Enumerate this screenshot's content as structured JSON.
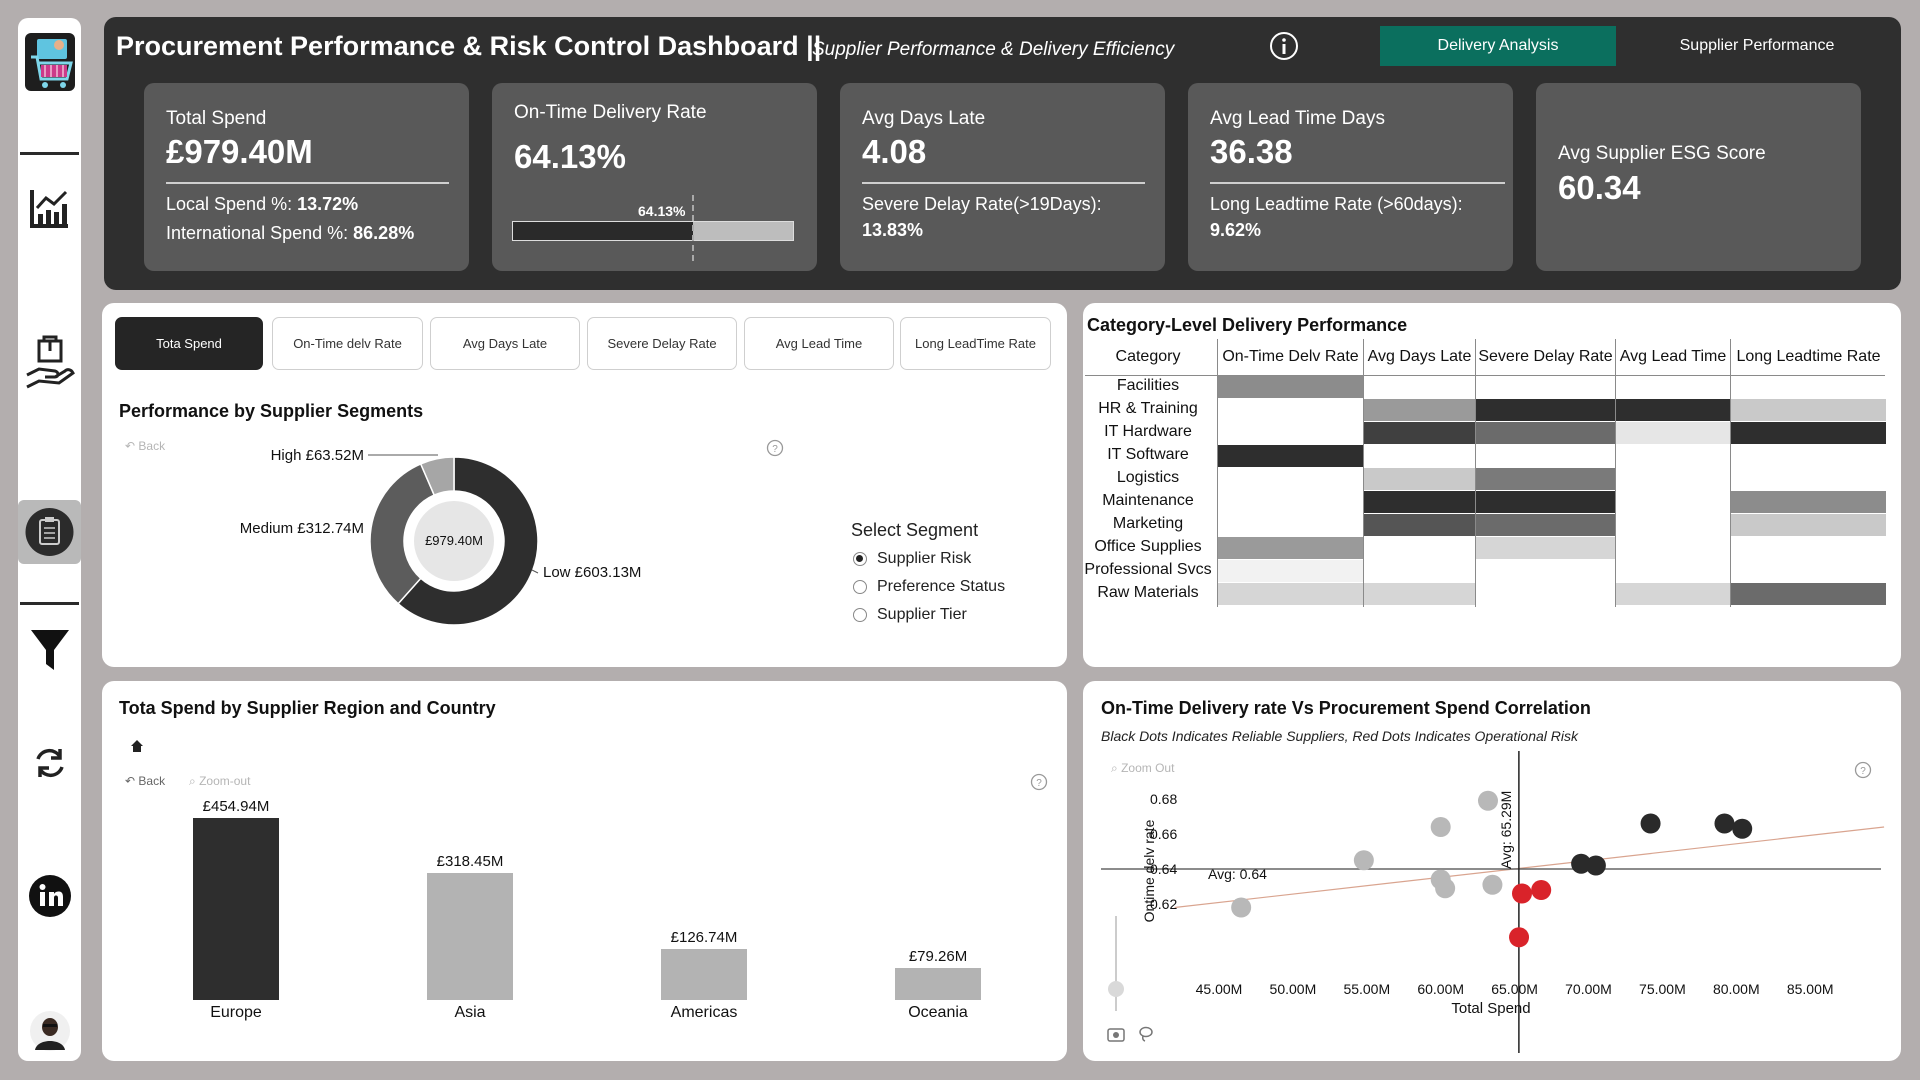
{
  "sidebar": {
    "items": [
      {
        "name": "logo-cart-icon"
      },
      {
        "name": "line-chart-icon"
      },
      {
        "name": "hand-box-icon"
      },
      {
        "name": "clipboard-icon"
      },
      {
        "name": "filter-icon"
      },
      {
        "name": "refresh-icon"
      },
      {
        "name": "linkedin-icon"
      },
      {
        "name": "avatar"
      }
    ]
  },
  "header": {
    "title": "Procurement Performance & Risk Control Dashboard ||",
    "subtitle": "Supplier Performance & Delivery Efficiency",
    "btn_delivery": "Delivery Analysis",
    "btn_supplier": "Supplier Performance",
    "colors": {
      "accent": "#0b6f5e",
      "header_bg": "#2f2f2f",
      "card_bg": "#595959"
    }
  },
  "kpis": {
    "spend": {
      "label": "Total Spend",
      "value": "£979.40M",
      "local_label": "Local Spend %:",
      "local_value": "13.72%",
      "intl_label": "International Spend %:",
      "intl_value": "86.28%"
    },
    "otd": {
      "label": "On-Time Delivery Rate",
      "value": "64.13%",
      "gauge_label": "64.13%",
      "gauge_fraction": 0.6413
    },
    "late": {
      "label": "Avg Days Late",
      "value": "4.08",
      "sub_label": "Severe Delay Rate(>19Days):",
      "sub_value": "13.83%"
    },
    "lead": {
      "label": "Avg Lead Time Days",
      "value": "36.38",
      "sub_label": "Long Leadtime Rate (>60days):",
      "sub_value": "9.62%"
    },
    "esg": {
      "label": "Avg Supplier ESG Score",
      "value": "60.34"
    }
  },
  "segments": {
    "tabs": [
      "Tota Spend",
      "On-Time delv Rate",
      "Avg Days Late",
      "Severe Delay Rate",
      "Avg Lead Time",
      "Long LeadTime Rate"
    ],
    "active_tab": 0,
    "title": "Performance by Supplier Segments",
    "back": "Back",
    "donut_center": "£979.40M",
    "donut_labels": {
      "high": "High £63.52M",
      "medium": "Medium £312.74M",
      "low": "Low £603.13M"
    },
    "select_title": "Select Segment",
    "options": [
      "Supplier Risk",
      "Preference Status",
      "Supplier Tier"
    ],
    "selected_option": 0
  },
  "heatmap": {
    "title": "Category-Level Delivery Performance",
    "columns": [
      "Category",
      "On-Time Delv Rate",
      "Avg Days Late",
      "Severe Delay Rate",
      "Avg Lead Time",
      "Long Leadtime Rate"
    ],
    "rows": [
      {
        "category": "Facilities",
        "shades": [
          "#8c8c8c",
          "#ffffff",
          "#ffffff",
          "#ffffff",
          "#ffffff"
        ]
      },
      {
        "category": "HR & Training",
        "shades": [
          "#ffffff",
          "#9a9a9a",
          "#2e2e2e",
          "#2e2e2e",
          "#c9c9c9"
        ]
      },
      {
        "category": "IT Hardware",
        "shades": [
          "#ffffff",
          "#404040",
          "#6b6b6b",
          "#e6e6e6",
          "#2e2e2e"
        ]
      },
      {
        "category": "IT Software",
        "shades": [
          "#2e2e2e",
          "#ffffff",
          "#ffffff",
          "#ffffff",
          "#ffffff"
        ]
      },
      {
        "category": "Logistics",
        "shades": [
          "#ffffff",
          "#c9c9c9",
          "#7a7a7a",
          "#ffffff",
          "#ffffff"
        ]
      },
      {
        "category": "Maintenance",
        "shades": [
          "#ffffff",
          "#2e2e2e",
          "#2e2e2e",
          "#ffffff",
          "#8c8c8c"
        ]
      },
      {
        "category": "Marketing",
        "shades": [
          "#ffffff",
          "#555555",
          "#6b6b6b",
          "#ffffff",
          "#c9c9c9"
        ]
      },
      {
        "category": "Office Supplies",
        "shades": [
          "#9a9a9a",
          "#ffffff",
          "#d6d6d6",
          "#ffffff",
          "#ffffff"
        ]
      },
      {
        "category": "Professional Svcs",
        "shades": [
          "#f2f2f2",
          "#ffffff",
          "#ffffff",
          "#ffffff",
          "#ffffff"
        ]
      },
      {
        "category": "Raw Materials",
        "shades": [
          "#d6d6d6",
          "#d6d6d6",
          "#ffffff",
          "#d6d6d6",
          "#6b6b6b"
        ]
      }
    ]
  },
  "region": {
    "title": "Tota Spend by Supplier Region and Country",
    "back": "Back",
    "zoom_out": "Zoom-out"
  },
  "scatter": {
    "title": "On-Time Delivery rate Vs Procurement Spend Correlation",
    "subtitle": "Black Dots Indicates Reliable Suppliers, Red Dots Indicates Operational  Risk",
    "zoom_out": "Zoom Out",
    "avg_y_label": "Avg: 0.64",
    "avg_x_label": "Avg: 65.29M"
  },
  "chart_data": [
    {
      "type": "pie",
      "title": "Performance by Supplier Segments",
      "categories": [
        "Low",
        "Medium",
        "High"
      ],
      "values": [
        603.13,
        312.74,
        63.52
      ],
      "colors": [
        "#2e2e2e",
        "#5c5c5c",
        "#a6a6a6"
      ],
      "center_text": "£979.40M"
    },
    {
      "type": "bar",
      "title": "Tota Spend by Supplier Region and Country",
      "categories": [
        "Europe",
        "Asia",
        "Americas",
        "Oceania"
      ],
      "values": [
        454.94,
        318.45,
        126.74,
        79.26
      ],
      "value_labels": [
        "£454.94M",
        "£318.45M",
        "£126.74M",
        "£79.26M"
      ],
      "colors": [
        "#2e2e2e",
        "#b3b3b3",
        "#b3b3b3",
        "#b3b3b3"
      ],
      "ylim": [
        0,
        500
      ]
    },
    {
      "type": "scatter",
      "title": "On-Time Delivery rate Vs Procurement Spend Correlation",
      "xlabel": "Total Spend",
      "ylabel": "Ontime delv rate",
      "xlim": [
        42,
        90
      ],
      "ylim": [
        0.597,
        0.686
      ],
      "xticks": [
        "45.00M",
        "50.00M",
        "55.00M",
        "60.00M",
        "65.00M",
        "70.00M",
        "75.00M",
        "80.00M",
        "85.00M"
      ],
      "xtick_values": [
        45,
        50,
        55,
        60,
        65,
        70,
        75,
        80,
        85
      ],
      "yticks": [
        "0.62",
        "0.64",
        "0.66",
        "0.68"
      ],
      "ytick_values": [
        0.62,
        0.64,
        0.66,
        0.68
      ],
      "avg_x": 65.29,
      "avg_y": 0.64,
      "trend": [
        [
          42,
          0.618
        ],
        [
          90,
          0.664
        ]
      ],
      "points": [
        {
          "x": 46.5,
          "y": 0.618,
          "group": "mid"
        },
        {
          "x": 54.8,
          "y": 0.645,
          "group": "mid"
        },
        {
          "x": 60.0,
          "y": 0.664,
          "group": "mid"
        },
        {
          "x": 63.2,
          "y": 0.679,
          "group": "mid"
        },
        {
          "x": 60.0,
          "y": 0.634,
          "group": "mid"
        },
        {
          "x": 60.3,
          "y": 0.629,
          "group": "mid"
        },
        {
          "x": 63.5,
          "y": 0.631,
          "group": "mid"
        },
        {
          "x": 65.5,
          "y": 0.626,
          "group": "risk"
        },
        {
          "x": 66.8,
          "y": 0.628,
          "group": "risk"
        },
        {
          "x": 65.3,
          "y": 0.601,
          "group": "risk"
        },
        {
          "x": 69.5,
          "y": 0.643,
          "group": "reliable"
        },
        {
          "x": 70.5,
          "y": 0.642,
          "group": "reliable"
        },
        {
          "x": 74.2,
          "y": 0.666,
          "group": "reliable"
        },
        {
          "x": 79.2,
          "y": 0.666,
          "group": "reliable"
        },
        {
          "x": 80.4,
          "y": 0.663,
          "group": "reliable"
        }
      ],
      "colors": {
        "reliable": "#2a2a2a",
        "mid": "#b8b8b8",
        "risk": "#d9232a",
        "trend": "#d9a48f"
      }
    }
  ]
}
